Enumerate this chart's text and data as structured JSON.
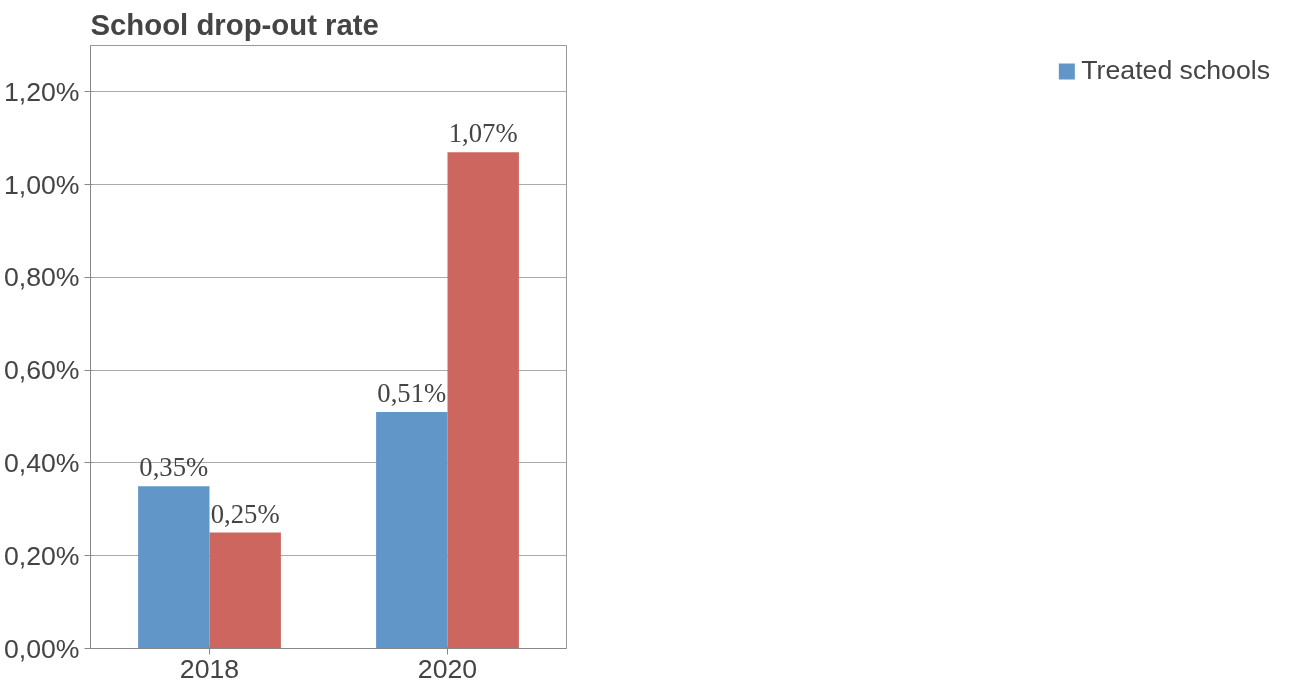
{
  "chart_data": {
    "type": "bar",
    "title": "School drop-out rate",
    "categories": [
      "2018",
      "2020"
    ],
    "series": [
      {
        "name": "Treated schools",
        "color": "#6096c8",
        "values": [
          0.35,
          0.51
        ],
        "value_labels": [
          "0,35%",
          "0,51%"
        ]
      },
      {
        "color": "#cc665e",
        "values": [
          0.25,
          1.07
        ],
        "value_labels": [
          "0,25%",
          "1,07%"
        ]
      }
    ],
    "ylim": [
      0,
      1.3
    ],
    "yticks": [
      {
        "value": 0,
        "label": "0,00%"
      },
      {
        "value": 0.2,
        "label": "0,20%"
      },
      {
        "value": 0.4,
        "label": "0,40%"
      },
      {
        "value": 0.6,
        "label": "0,60%"
      },
      {
        "value": 0.8,
        "label": "0,80%"
      },
      {
        "value": 1.0,
        "label": "1,00%"
      },
      {
        "value": 1.2,
        "label": "1,20%"
      }
    ],
    "grid": "y",
    "legend": "right"
  }
}
